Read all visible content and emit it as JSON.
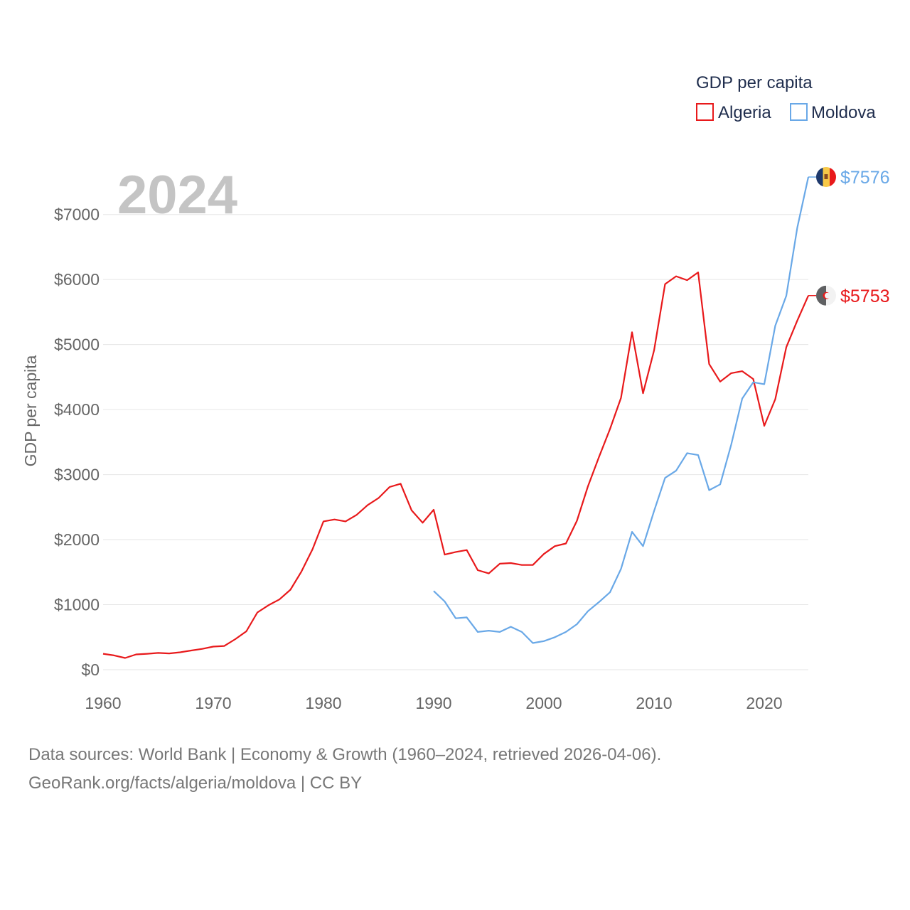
{
  "chart_data": {
    "type": "line",
    "title": "",
    "year_label": "2024",
    "xlabel": "",
    "ylabel": "GDP per capita",
    "xlim": [
      1960,
      2024
    ],
    "ylim": [
      0,
      7576
    ],
    "x_ticks": [
      "1960",
      "1970",
      "1980",
      "1990",
      "2000",
      "2010",
      "2020"
    ],
    "y_ticks": [
      "$0",
      "$1000",
      "$2000",
      "$3000",
      "$4000",
      "$5000",
      "$6000",
      "$7000"
    ],
    "legend": {
      "title": "GDP per capita",
      "position": "top-right"
    },
    "series": [
      {
        "name": "Algeria",
        "color": "#e8191b",
        "end_label": "$5753",
        "flag_icon": "algeria-flag-icon",
        "x": [
          1960,
          1961,
          1962,
          1963,
          1964,
          1965,
          1966,
          1967,
          1968,
          1969,
          1970,
          1971,
          1972,
          1973,
          1974,
          1975,
          1976,
          1977,
          1978,
          1979,
          1980,
          1981,
          1982,
          1983,
          1984,
          1985,
          1986,
          1987,
          1988,
          1989,
          1990,
          1991,
          1992,
          1993,
          1994,
          1995,
          1996,
          1997,
          1998,
          1999,
          2000,
          2001,
          2002,
          2003,
          2004,
          2005,
          2006,
          2007,
          2008,
          2009,
          2010,
          2011,
          2012,
          2013,
          2014,
          2015,
          2016,
          2017,
          2018,
          2019,
          2020,
          2021,
          2022,
          2023,
          2024
        ],
        "values": [
          245,
          220,
          180,
          235,
          245,
          258,
          250,
          268,
          295,
          320,
          355,
          365,
          470,
          590,
          880,
          990,
          1080,
          1230,
          1510,
          1850,
          2280,
          2310,
          2280,
          2380,
          2530,
          2640,
          2810,
          2860,
          2450,
          2260,
          2460,
          1770,
          1810,
          1840,
          1530,
          1480,
          1630,
          1640,
          1610,
          1610,
          1780,
          1900,
          1940,
          2290,
          2820,
          3270,
          3700,
          4180,
          5190,
          4250,
          4910,
          5930,
          6050,
          5990,
          6110,
          4700,
          4430,
          4560,
          4590,
          4470,
          3750,
          4160,
          4960,
          5370,
          5753
        ]
      },
      {
        "name": "Moldova",
        "color": "#69a8e7",
        "end_label": "$7576",
        "flag_icon": "moldova-flag-icon",
        "x": [
          1990,
          1991,
          1992,
          1993,
          1994,
          1995,
          1996,
          1997,
          1998,
          1999,
          2000,
          2001,
          2002,
          2003,
          2004,
          2005,
          2006,
          2007,
          2008,
          2009,
          2010,
          2011,
          2012,
          2013,
          2014,
          2015,
          2016,
          2017,
          2018,
          2019,
          2020,
          2021,
          2022,
          2023,
          2024
        ],
        "values": [
          1210,
          1050,
          790,
          805,
          580,
          600,
          580,
          660,
          580,
          410,
          440,
          500,
          580,
          700,
          900,
          1040,
          1190,
          1550,
          2120,
          1900,
          2440,
          2950,
          3060,
          3330,
          3300,
          2760,
          2850,
          3460,
          4170,
          4420,
          4390,
          5290,
          5750,
          6800,
          7576
        ]
      }
    ]
  },
  "footer": {
    "line1": "Data sources: World Bank | Economy & Growth (1960–2024, retrieved 2026-04-06).",
    "line2": "GeoRank.org/facts/algeria/moldova | CC BY"
  }
}
